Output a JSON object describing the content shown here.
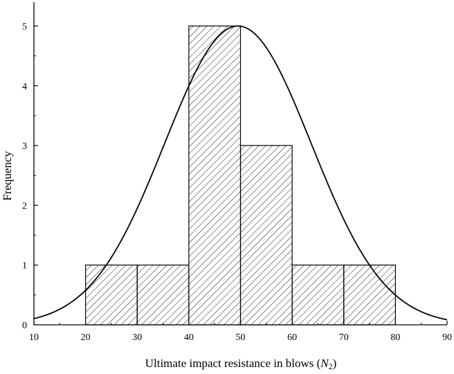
{
  "chart_data": {
    "type": "bar",
    "title": "",
    "xlabel": "Ultimate impact resistance in blows (",
    "xlabel_symbol": "N",
    "xlabel_subscript": "2",
    "xlabel_close": ")",
    "ylabel": "Frequency",
    "xlim": [
      10,
      90
    ],
    "ylim": [
      0,
      5.4
    ],
    "xticks": [
      10,
      20,
      30,
      40,
      50,
      60,
      70,
      80,
      90
    ],
    "yticks": [
      0,
      1,
      2,
      3,
      4,
      5
    ],
    "bins": [
      {
        "start": 20,
        "end": 30,
        "value": 1
      },
      {
        "start": 30,
        "end": 40,
        "value": 1
      },
      {
        "start": 40,
        "end": 50,
        "value": 5
      },
      {
        "start": 50,
        "end": 60,
        "value": 3
      },
      {
        "start": 60,
        "end": 70,
        "value": 1
      },
      {
        "start": 70,
        "end": 80,
        "value": 1
      }
    ],
    "fit_curve": {
      "type": "normal",
      "mean": 49.5,
      "sd": 14.2,
      "peak": 5.0
    },
    "bar_fill": "diagonal-hatch",
    "grid": false,
    "legend": "none"
  }
}
